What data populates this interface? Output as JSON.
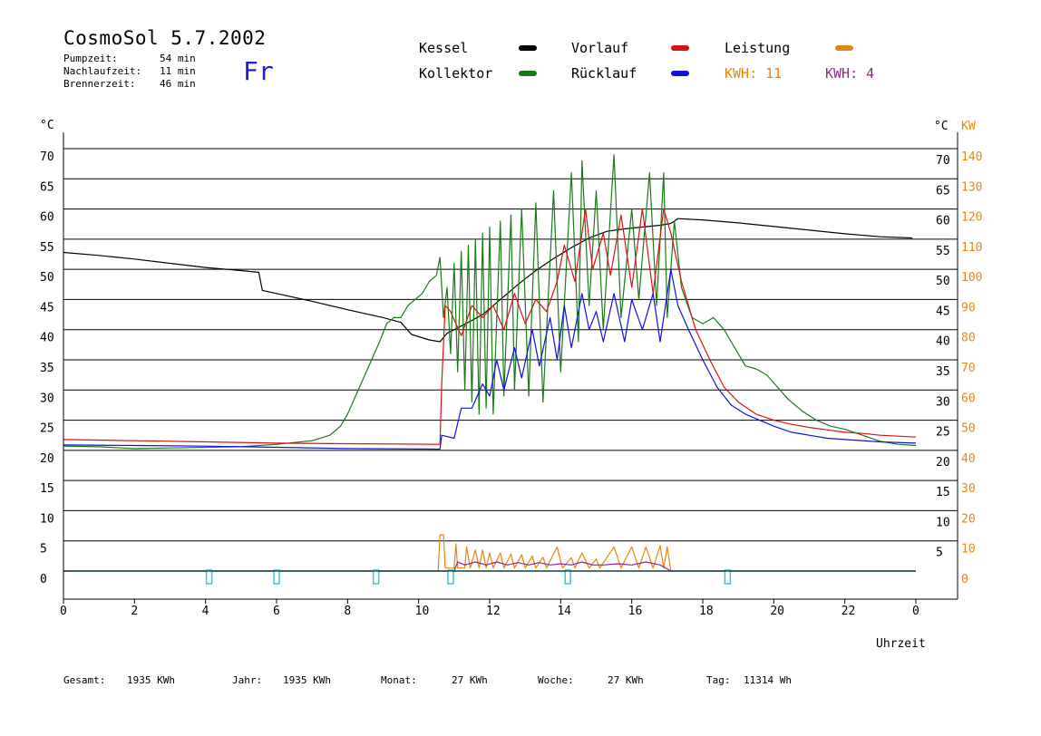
{
  "header": {
    "title": "CosmoSol 5.7.2002",
    "day": "Fr",
    "stats": [
      {
        "label": "Pumpzeit:",
        "value": "54 min"
      },
      {
        "label": "Nachlaufzeit:",
        "value": "11 min"
      },
      {
        "label": "Brennerzeit:",
        "value": "46 min"
      }
    ]
  },
  "legend": {
    "items": [
      {
        "name": "Kessel",
        "color": "#000000"
      },
      {
        "name": "Kollektor",
        "color": "#1a7a1a"
      },
      {
        "name": "Vorlauf",
        "color": "#dd1111"
      },
      {
        "name": "Rücklauf",
        "color": "#1111dd"
      },
      {
        "name": "Leistung",
        "color": "#e8860c"
      }
    ],
    "kwh1": "KWH: 11",
    "kwh1_color": "#e8860c",
    "kwh2": "KWH: 4",
    "kwh2_color": "#8a2a8a"
  },
  "footer": [
    {
      "label": "Gesamt:",
      "value": "1935 KWh"
    },
    {
      "label": "Jahr:",
      "value": "1935 KWh"
    },
    {
      "label": "Monat:",
      "value": "27 KWh"
    },
    {
      "label": "Woche:",
      "value": "27 KWh"
    },
    {
      "label": "Tag:",
      "value": "11314 Wh"
    }
  ],
  "chart_data": {
    "type": "line",
    "xlabel": "Uhrzeit",
    "ylabel_left": "°C",
    "ylabel_right_c": "°C",
    "ylabel_right_kw": "KW",
    "xlim": [
      0,
      24
    ],
    "ylim": [
      0,
      70
    ],
    "x_ticks": [
      "0",
      "2",
      "4",
      "6",
      "8",
      "10",
      "12",
      "14",
      "16",
      "18",
      "20",
      "22",
      "0"
    ],
    "y_ticks_left": [
      "0",
      "5",
      "10",
      "15",
      "20",
      "25",
      "30",
      "35",
      "40",
      "45",
      "50",
      "55",
      "60",
      "65",
      "70"
    ],
    "y_ticks_right": [
      "5",
      "10",
      "15",
      "20",
      "25",
      "30",
      "35",
      "40",
      "45",
      "50",
      "55",
      "60",
      "65",
      "70"
    ],
    "kw_ticks": [
      "0",
      "10",
      "20",
      "30",
      "40",
      "50",
      "60",
      "70",
      "80",
      "90",
      "100",
      "110",
      "120",
      "130",
      "140"
    ],
    "kw_per_degree": 2,
    "grid": true,
    "series": [
      {
        "name": "Kessel",
        "color": "#000000",
        "points": [
          [
            0,
            52.8
          ],
          [
            1,
            52.3
          ],
          [
            2,
            51.7
          ],
          [
            3,
            51.0
          ],
          [
            4,
            50.3
          ],
          [
            5,
            49.8
          ],
          [
            5.5,
            49.5
          ],
          [
            5.6,
            46.5
          ],
          [
            6,
            46.0
          ],
          [
            7,
            44.7
          ],
          [
            8,
            43.3
          ],
          [
            9,
            42.0
          ],
          [
            9.5,
            41.2
          ],
          [
            9.8,
            39.2
          ],
          [
            10.3,
            38.3
          ],
          [
            10.6,
            38.0
          ],
          [
            10.8,
            39.4
          ],
          [
            11.2,
            40.6
          ],
          [
            11.8,
            42.5
          ],
          [
            12.3,
            45.0
          ],
          [
            12.8,
            47.5
          ],
          [
            13.3,
            49.8
          ],
          [
            13.8,
            51.8
          ],
          [
            14.3,
            53.6
          ],
          [
            14.8,
            55.2
          ],
          [
            15.3,
            56.3
          ],
          [
            15.8,
            56.7
          ],
          [
            16.3,
            57.0
          ],
          [
            16.8,
            57.3
          ],
          [
            17.1,
            57.6
          ],
          [
            17.3,
            58.4
          ],
          [
            18,
            58.2
          ],
          [
            19,
            57.7
          ],
          [
            20,
            57.1
          ],
          [
            21,
            56.5
          ],
          [
            22,
            55.9
          ],
          [
            23,
            55.4
          ],
          [
            23.9,
            55.2
          ]
        ]
      },
      {
        "name": "Kollektor",
        "color": "#1a7a1a",
        "points": [
          [
            0,
            20.7
          ],
          [
            1,
            20.6
          ],
          [
            2,
            20.3
          ],
          [
            3,
            20.4
          ],
          [
            4,
            20.5
          ],
          [
            5,
            20.6
          ],
          [
            6,
            21.0
          ],
          [
            6.5,
            21.3
          ],
          [
            7,
            21.6
          ],
          [
            7.5,
            22.5
          ],
          [
            7.8,
            24.0
          ],
          [
            8,
            26.0
          ],
          [
            8.3,
            30.0
          ],
          [
            8.6,
            34.0
          ],
          [
            8.9,
            38.0
          ],
          [
            9.1,
            41.0
          ],
          [
            9.3,
            42.0
          ],
          [
            9.5,
            42.0
          ],
          [
            9.7,
            44.0
          ],
          [
            9.9,
            45.0
          ],
          [
            10.1,
            46.0
          ],
          [
            10.3,
            48.0
          ],
          [
            10.5,
            49.0
          ],
          [
            10.6,
            52.0
          ],
          [
            10.7,
            42.0
          ],
          [
            10.8,
            47.0
          ],
          [
            10.9,
            36.0
          ],
          [
            11.0,
            51.0
          ],
          [
            11.1,
            33.0
          ],
          [
            11.2,
            53.0
          ],
          [
            11.3,
            30.0
          ],
          [
            11.4,
            54.0
          ],
          [
            11.5,
            28.0
          ],
          [
            11.6,
            55.0
          ],
          [
            11.7,
            26.0
          ],
          [
            11.8,
            56.0
          ],
          [
            11.9,
            27.0
          ],
          [
            12.0,
            57.0
          ],
          [
            12.1,
            26.0
          ],
          [
            12.3,
            58.0
          ],
          [
            12.4,
            29.0
          ],
          [
            12.6,
            59.0
          ],
          [
            12.7,
            30.0
          ],
          [
            12.9,
            60.0
          ],
          [
            13.1,
            29.0
          ],
          [
            13.3,
            61.0
          ],
          [
            13.5,
            28.0
          ],
          [
            13.8,
            63.0
          ],
          [
            14.0,
            33.0
          ],
          [
            14.3,
            66.0
          ],
          [
            14.5,
            38.0
          ],
          [
            14.6,
            68.0
          ],
          [
            14.8,
            44.0
          ],
          [
            15.0,
            63.0
          ],
          [
            15.2,
            40.0
          ],
          [
            15.5,
            69.0
          ],
          [
            15.7,
            42.0
          ],
          [
            16.0,
            60.0
          ],
          [
            16.2,
            45.0
          ],
          [
            16.5,
            66.0
          ],
          [
            16.7,
            44.0
          ],
          [
            16.9,
            66.0
          ],
          [
            17.0,
            42.0
          ],
          [
            17.2,
            58.0
          ],
          [
            17.4,
            47.0
          ],
          [
            17.7,
            42.0
          ],
          [
            18.0,
            41.0
          ],
          [
            18.3,
            42.0
          ],
          [
            18.6,
            40.0
          ],
          [
            18.9,
            37.0
          ],
          [
            19.2,
            34.0
          ],
          [
            19.5,
            33.5
          ],
          [
            19.8,
            32.5
          ],
          [
            20.1,
            30.5
          ],
          [
            20.4,
            28.5
          ],
          [
            20.8,
            26.5
          ],
          [
            21.2,
            25.0
          ],
          [
            21.6,
            24.0
          ],
          [
            22.0,
            23.5
          ],
          [
            22.5,
            22.5
          ],
          [
            23.0,
            21.5
          ],
          [
            23.5,
            21.0
          ],
          [
            24.0,
            20.8
          ]
        ]
      },
      {
        "name": "Vorlauf",
        "color": "#dd1111",
        "points": [
          [
            0,
            21.8
          ],
          [
            2,
            21.6
          ],
          [
            4,
            21.4
          ],
          [
            6,
            21.2
          ],
          [
            8,
            21.1
          ],
          [
            10.6,
            21.0
          ],
          [
            10.65,
            31.0
          ],
          [
            10.75,
            44.0
          ],
          [
            10.9,
            43.0
          ],
          [
            11.2,
            39.0
          ],
          [
            11.5,
            44.0
          ],
          [
            11.8,
            42.0
          ],
          [
            12.1,
            44.0
          ],
          [
            12.4,
            40.0
          ],
          [
            12.7,
            46.0
          ],
          [
            13.0,
            41.0
          ],
          [
            13.3,
            45.0
          ],
          [
            13.6,
            43.0
          ],
          [
            13.9,
            48.0
          ],
          [
            14.1,
            54.0
          ],
          [
            14.4,
            48.0
          ],
          [
            14.7,
            60.0
          ],
          [
            14.9,
            50.0
          ],
          [
            15.2,
            56.0
          ],
          [
            15.4,
            49.0
          ],
          [
            15.7,
            59.0
          ],
          [
            16.0,
            47.0
          ],
          [
            16.3,
            60.0
          ],
          [
            16.6,
            46.0
          ],
          [
            16.9,
            60.0
          ],
          [
            17.1,
            56.0
          ],
          [
            17.4,
            48.0
          ],
          [
            17.8,
            40.0
          ],
          [
            18.2,
            35.0
          ],
          [
            18.6,
            30.5
          ],
          [
            19.0,
            28.0
          ],
          [
            19.5,
            26.0
          ],
          [
            20.0,
            25.0
          ],
          [
            20.5,
            24.3
          ],
          [
            21.0,
            23.8
          ],
          [
            21.5,
            23.4
          ],
          [
            22.0,
            23.0
          ],
          [
            22.5,
            22.8
          ],
          [
            23.0,
            22.5
          ],
          [
            24.0,
            22.2
          ]
        ]
      },
      {
        "name": "Rücklauf",
        "color": "#1111dd",
        "points": [
          [
            0,
            20.9
          ],
          [
            2,
            20.8
          ],
          [
            4,
            20.7
          ],
          [
            6,
            20.5
          ],
          [
            8,
            20.3
          ],
          [
            10.6,
            20.2
          ],
          [
            10.65,
            22.5
          ],
          [
            11.0,
            22.0
          ],
          [
            11.2,
            27.0
          ],
          [
            11.5,
            27.0
          ],
          [
            11.8,
            31.0
          ],
          [
            12.0,
            29.0
          ],
          [
            12.2,
            35.0
          ],
          [
            12.4,
            30.0
          ],
          [
            12.7,
            37.0
          ],
          [
            12.9,
            32.0
          ],
          [
            13.2,
            40.0
          ],
          [
            13.4,
            34.0
          ],
          [
            13.7,
            42.0
          ],
          [
            13.9,
            35.0
          ],
          [
            14.1,
            44.0
          ],
          [
            14.3,
            37.0
          ],
          [
            14.6,
            46.0
          ],
          [
            14.8,
            40.0
          ],
          [
            15.0,
            43.0
          ],
          [
            15.2,
            38.0
          ],
          [
            15.5,
            46.0
          ],
          [
            15.8,
            38.0
          ],
          [
            16.0,
            45.0
          ],
          [
            16.3,
            40.0
          ],
          [
            16.6,
            46.0
          ],
          [
            16.8,
            38.0
          ],
          [
            17.1,
            50.0
          ],
          [
            17.3,
            44.0
          ],
          [
            17.6,
            40.0
          ],
          [
            18.0,
            35.0
          ],
          [
            18.4,
            30.5
          ],
          [
            18.8,
            27.5
          ],
          [
            19.2,
            26.0
          ],
          [
            19.6,
            25.0
          ],
          [
            20.0,
            24.0
          ],
          [
            20.5,
            23.0
          ],
          [
            21.0,
            22.5
          ],
          [
            21.5,
            22.0
          ],
          [
            22.0,
            21.8
          ],
          [
            23.0,
            21.4
          ],
          [
            24.0,
            21.2
          ]
        ]
      },
      {
        "name": "Leistung",
        "color": "#e8860c",
        "unit": "KW",
        "points": [
          [
            0,
            0
          ],
          [
            10.55,
            0
          ],
          [
            10.6,
            6
          ],
          [
            10.7,
            6
          ],
          [
            10.75,
            0.5
          ],
          [
            11.0,
            0.5
          ],
          [
            11.05,
            4.5
          ],
          [
            11.1,
            0.5
          ],
          [
            11.3,
            0.5
          ],
          [
            11.35,
            4.0
          ],
          [
            11.45,
            0.5
          ],
          [
            11.6,
            3.5
          ],
          [
            11.7,
            0.5
          ],
          [
            11.8,
            3.5
          ],
          [
            11.9,
            0.5
          ],
          [
            12.0,
            3.0
          ],
          [
            12.1,
            0.5
          ],
          [
            12.3,
            3.0
          ],
          [
            12.4,
            0.5
          ],
          [
            12.6,
            2.8
          ],
          [
            12.7,
            0.5
          ],
          [
            12.9,
            2.7
          ],
          [
            13.0,
            0.5
          ],
          [
            13.2,
            2.5
          ],
          [
            13.3,
            0.5
          ],
          [
            13.5,
            2.3
          ],
          [
            13.6,
            0.5
          ],
          [
            13.9,
            4.0
          ],
          [
            14.05,
            0.5
          ],
          [
            14.3,
            2.2
          ],
          [
            14.4,
            0.5
          ],
          [
            14.6,
            3.0
          ],
          [
            14.8,
            0.5
          ],
          [
            15.0,
            2.0
          ],
          [
            15.1,
            0.5
          ],
          [
            15.5,
            4.0
          ],
          [
            15.7,
            0.5
          ],
          [
            16.0,
            4.0
          ],
          [
            16.2,
            0.5
          ],
          [
            16.4,
            4.0
          ],
          [
            16.6,
            0.5
          ],
          [
            16.8,
            4.2
          ],
          [
            16.9,
            0.5
          ],
          [
            17.0,
            4.0
          ],
          [
            17.1,
            0
          ],
          [
            24.0,
            0
          ]
        ]
      },
      {
        "name": "KWH 4",
        "color": "#8a2a8a",
        "points": [
          [
            0,
            0
          ],
          [
            11.0,
            0
          ],
          [
            11.1,
            1.5
          ],
          [
            11.3,
            1.0
          ],
          [
            11.6,
            1.5
          ],
          [
            11.9,
            1.0
          ],
          [
            12.2,
            1.5
          ],
          [
            12.5,
            1.0
          ],
          [
            12.8,
            1.4
          ],
          [
            13.1,
            1.0
          ],
          [
            13.4,
            1.4
          ],
          [
            13.7,
            1.0
          ],
          [
            14.0,
            1.2
          ],
          [
            14.3,
            1.0
          ],
          [
            14.6,
            1.5
          ],
          [
            14.9,
            1.0
          ],
          [
            15.2,
            1.0
          ],
          [
            15.6,
            1.2
          ],
          [
            16.0,
            1.0
          ],
          [
            16.4,
            1.5
          ],
          [
            16.8,
            1.0
          ],
          [
            17.1,
            0
          ],
          [
            24.0,
            0
          ]
        ]
      }
    ],
    "pump_markers": [
      4.1,
      6.0,
      8.8,
      10.9,
      14.2,
      18.7
    ],
    "pump_color": "#38c8d4"
  }
}
